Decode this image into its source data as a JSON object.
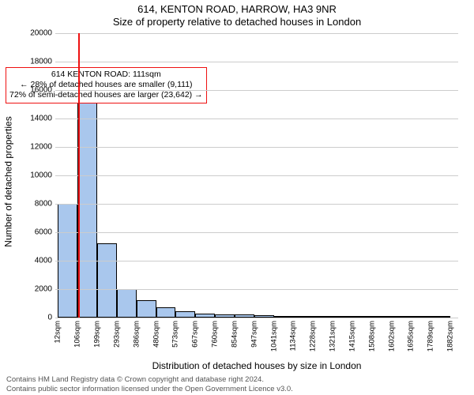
{
  "title1": "614, KENTON ROAD, HARROW, HA3 9NR",
  "title2": "Size of property relative to detached houses in London",
  "ylabel": "Number of detached properties",
  "xlabel": "Distribution of detached houses by size in London",
  "footer_line1": "Contains HM Land Registry data © Crown copyright and database right 2024.",
  "footer_line2": "Contains public sector information licensed under the Open Government Licence v3.0.",
  "chart": {
    "type": "histogram",
    "background_color": "#ffffff",
    "grid_color": "#cccccc",
    "bar_fill": "#a9c7ed",
    "bar_stroke": "#000000",
    "refline_color": "#ee1111",
    "refline_x": 111,
    "xlim": [
      0,
      1920
    ],
    "ylim": [
      0,
      20000
    ],
    "ytick_step": 2000,
    "title_fontsize": 13,
    "label_fontsize": 12,
    "tick_fontsize": 10,
    "xtick_labels": [
      "12sqm",
      "106sqm",
      "199sqm",
      "293sqm",
      "386sqm",
      "480sqm",
      "573sqm",
      "667sqm",
      "760sqm",
      "854sqm",
      "947sqm",
      "1041sqm",
      "1134sqm",
      "1228sqm",
      "1321sqm",
      "1415sqm",
      "1508sqm",
      "1602sqm",
      "1695sqm",
      "1789sqm",
      "1882sqm"
    ],
    "xtick_positions": [
      12,
      106,
      199,
      293,
      386,
      480,
      573,
      667,
      760,
      854,
      947,
      1041,
      1134,
      1228,
      1321,
      1415,
      1508,
      1602,
      1695,
      1789,
      1882
    ],
    "bin_width": 93.5,
    "bin_edges": [
      12,
      106,
      199,
      293,
      386,
      480,
      573,
      667,
      760,
      854,
      947,
      1041,
      1134,
      1228,
      1321,
      1415,
      1508,
      1602,
      1695,
      1789,
      1882
    ],
    "values": [
      8000,
      16300,
      5200,
      2000,
      1200,
      700,
      450,
      300,
      250,
      200,
      150,
      120,
      100,
      80,
      60,
      50,
      40,
      30,
      20,
      10
    ]
  },
  "annotation": {
    "line1": "614 KENTON ROAD: 111sqm",
    "line2": "← 28% of detached houses are smaller (9,111)",
    "line3": "72% of semi-detached houses are larger (23,642) →",
    "border_color": "#ee1111",
    "fontsize": 10.5,
    "x_center": 290,
    "y_top": 17600
  }
}
